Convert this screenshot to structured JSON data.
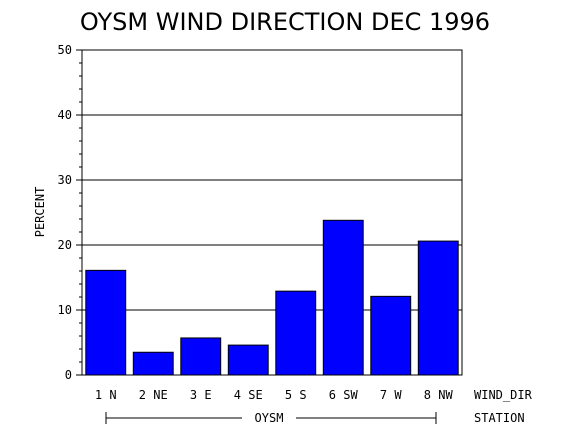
{
  "chart_data": {
    "type": "bar",
    "title": "OYSM WIND DIRECTION DEC 1996",
    "ylabel": "PERCENT",
    "categories": [
      "1 N",
      "2 NE",
      "3 E",
      "4 SE",
      "5 S",
      "6 SW",
      "7 W",
      "8 NW"
    ],
    "values": [
      16.1,
      3.5,
      5.7,
      4.6,
      12.9,
      23.8,
      12.1,
      20.6
    ],
    "ylim": [
      0,
      50
    ],
    "yticks": [
      "0",
      "10",
      "20",
      "30",
      "40",
      "50"
    ],
    "x_axis_label": "WIND_DIR",
    "group_label": "OYSM",
    "group_axis_label": "STATION",
    "bar_color": "#0000ff",
    "grid": "horizontal"
  }
}
